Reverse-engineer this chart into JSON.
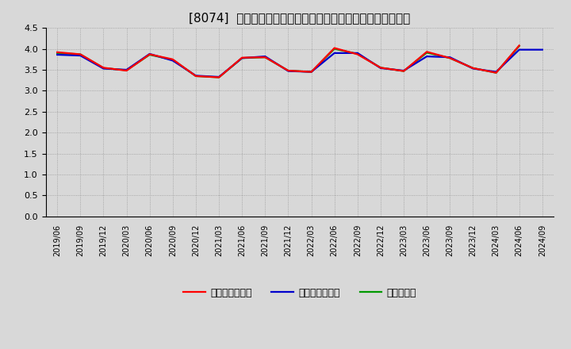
{
  "title": "[8074]  売上債権回転率、買入債務回転率、在庫回転率の推移",
  "x_labels": [
    "2019/06",
    "2019/09",
    "2019/12",
    "2020/03",
    "2020/06",
    "2020/09",
    "2020/12",
    "2021/03",
    "2021/06",
    "2021/09",
    "2021/12",
    "2022/03",
    "2022/06",
    "2022/09",
    "2022/12",
    "2023/03",
    "2023/06",
    "2023/09",
    "2023/12",
    "2024/03",
    "2024/06",
    "2024/09"
  ],
  "uriage债権": [
    3.92,
    3.87,
    3.55,
    3.48,
    3.87,
    3.75,
    3.35,
    3.32,
    3.79,
    3.8,
    3.48,
    3.45,
    4.02,
    3.87,
    3.55,
    3.47,
    3.93,
    3.78,
    3.54,
    3.43,
    4.08,
    null
  ],
  "kaiire债务": [
    3.86,
    3.84,
    3.53,
    3.5,
    3.88,
    3.72,
    3.36,
    3.33,
    3.78,
    3.82,
    3.47,
    3.45,
    3.9,
    3.9,
    3.54,
    3.48,
    3.82,
    3.8,
    3.53,
    3.45,
    3.98,
    3.98
  ],
  "zaiko": [
    3.9,
    3.87,
    3.54,
    3.49,
    3.86,
    3.74,
    3.35,
    3.32,
    3.78,
    3.8,
    3.48,
    3.45,
    4.0,
    3.88,
    3.55,
    3.47,
    3.91,
    3.78,
    3.54,
    3.43,
    4.07,
    null
  ],
  "legend_labels_ja": [
    "売上債権回転率",
    "買入債務回転率",
    "在庫回転率"
  ],
  "colors": [
    "#ff0000",
    "#0000cc",
    "#009900"
  ],
  "ylim": [
    0.0,
    4.5
  ],
  "yticks": [
    0.0,
    0.5,
    1.0,
    1.5,
    2.0,
    2.5,
    3.0,
    3.5,
    4.0,
    4.5
  ],
  "background_color": "#d8d8d8",
  "plot_bg_color": "#d8d8d8",
  "title_fontsize": 11,
  "linewidth": 1.6
}
